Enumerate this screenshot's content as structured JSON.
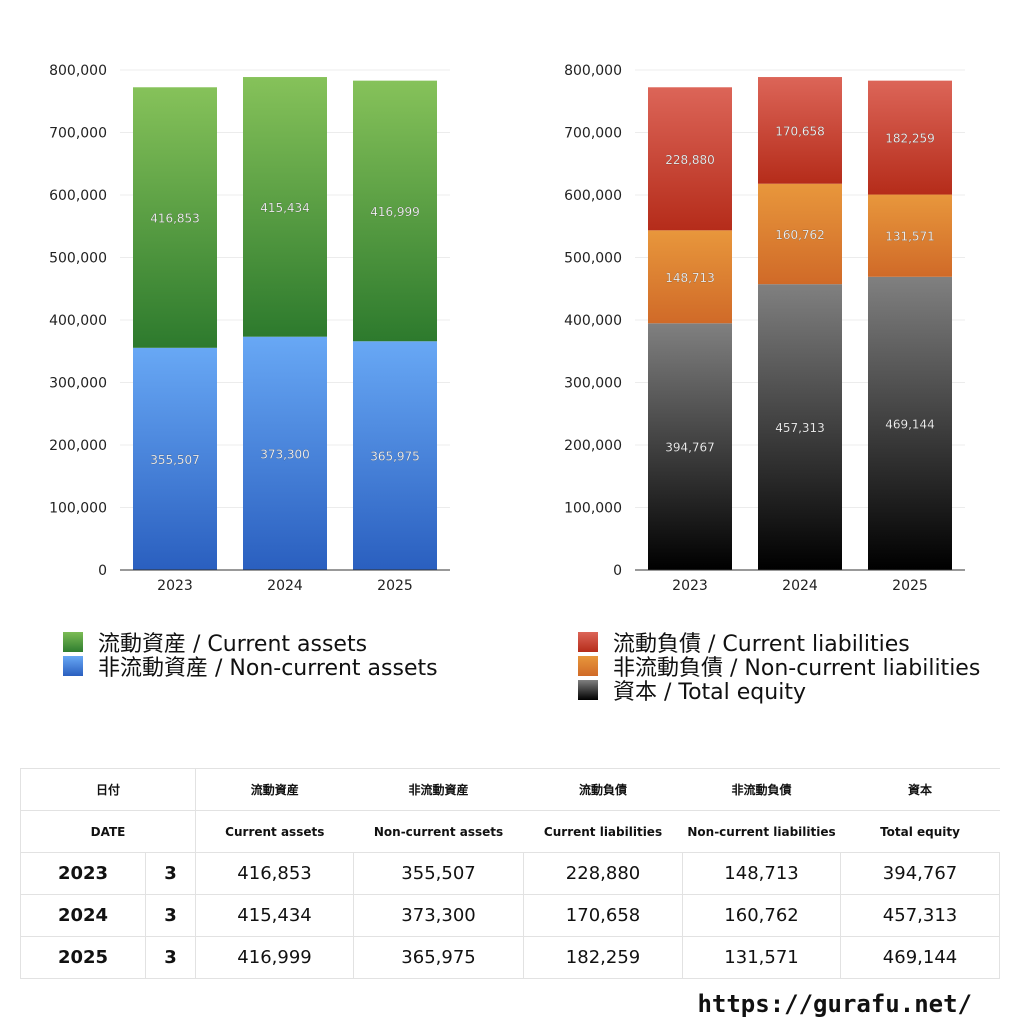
{
  "chart_data": [
    {
      "type": "bar",
      "stacked": true,
      "title": "",
      "categories": [
        "2023",
        "2024",
        "2025"
      ],
      "ylim": [
        0,
        800000
      ],
      "yticks": [
        "0",
        "100,000",
        "200,000",
        "300,000",
        "400,000",
        "500,000",
        "600,000",
        "700,000",
        "800,000"
      ],
      "series": [
        {
          "name": "非流動資産 / Non-current assets",
          "values": [
            355507,
            373300,
            365975
          ],
          "labels": [
            "355,507",
            "373,300",
            "365,975"
          ],
          "colors": [
            "#2a5fbf",
            "#68a8f5"
          ]
        },
        {
          "name": "流動資産 / Current assets",
          "values": [
            416853,
            415434,
            416999
          ],
          "labels": [
            "416,853",
            "415,434",
            "416,999"
          ],
          "colors": [
            "#2d7a2d",
            "#86c25a"
          ]
        }
      ]
    },
    {
      "type": "bar",
      "stacked": true,
      "title": "",
      "categories": [
        "2023",
        "2024",
        "2025"
      ],
      "ylim": [
        0,
        800000
      ],
      "yticks": [
        "0",
        "100,000",
        "200,000",
        "300,000",
        "400,000",
        "500,000",
        "600,000",
        "700,000",
        "800,000"
      ],
      "series": [
        {
          "name": "資本 / Total equity",
          "values": [
            394767,
            457313,
            469144
          ],
          "labels": [
            "394,767",
            "457,313",
            "469,144"
          ],
          "colors": [
            "#000000",
            "#808080"
          ]
        },
        {
          "name": "非流動負債 / Non-current liabilities",
          "values": [
            148713,
            160762,
            131571
          ],
          "labels": [
            "148,713",
            "160,762",
            "131,571"
          ],
          "colors": [
            "#d06a28",
            "#e8973c"
          ]
        },
        {
          "name": "流動負債 / Current liabilities",
          "values": [
            228880,
            170658,
            182259
          ],
          "labels": [
            "228,880",
            "170,658",
            "182,259"
          ],
          "colors": [
            "#b52c1a",
            "#dc6558"
          ]
        }
      ]
    }
  ],
  "legend_left": [
    {
      "label": "流動資産 / Current assets",
      "color": "#4a9a3a"
    },
    {
      "label": "非流動資産 / Non-current assets",
      "color": "#3d7ad6"
    }
  ],
  "legend_right": [
    {
      "label": "流動負債 / Current liabilities",
      "color": "#cc4a3a"
    },
    {
      "label": "非流動負債 / Non-current liabilities",
      "color": "#e08a3a"
    },
    {
      "label": "資本 / Total equity",
      "color": "#333333"
    }
  ],
  "table": {
    "header_jp": [
      "日付",
      "流動資産",
      "非流動資産",
      "流動負債",
      "非流動負債",
      "資本"
    ],
    "header_en": [
      "DATE",
      "Current assets",
      "Non-current assets",
      "Current liabilities",
      "Non-current liabilities",
      "Total equity"
    ],
    "rows": [
      {
        "year": "2023",
        "month": "3",
        "cells": [
          "416,853",
          "355,507",
          "228,880",
          "148,713",
          "394,767"
        ]
      },
      {
        "year": "2024",
        "month": "3",
        "cells": [
          "415,434",
          "373,300",
          "170,658",
          "160,762",
          "457,313"
        ]
      },
      {
        "year": "2025",
        "month": "3",
        "cells": [
          "416,999",
          "365,975",
          "182,259",
          "131,571",
          "469,144"
        ]
      }
    ]
  },
  "footer": {
    "url": "https://gurafu.net/"
  }
}
